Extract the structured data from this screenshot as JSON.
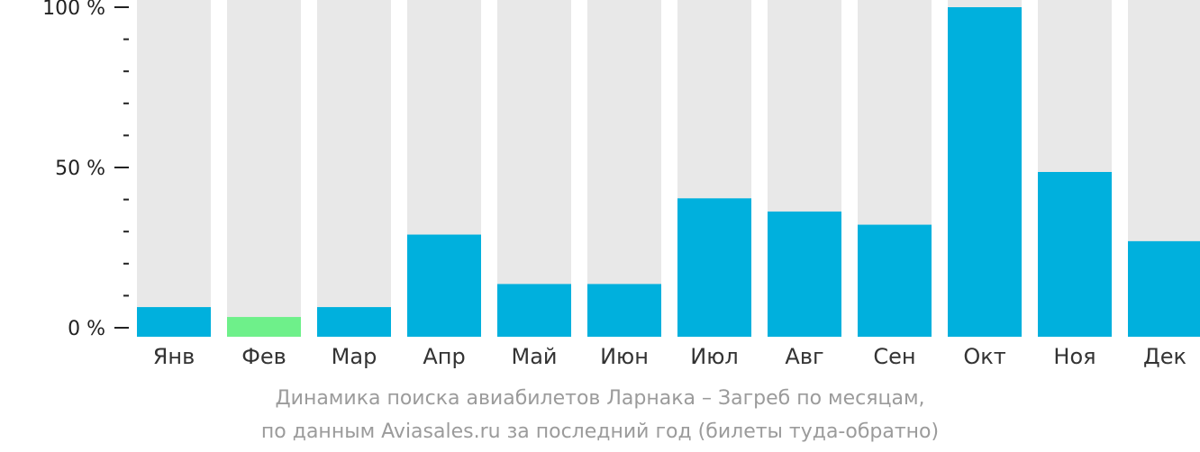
{
  "colors": {
    "track": "#e8e8e8",
    "bar": "#00b0dd",
    "bar_min": "#6ef08a",
    "axis": "#222222"
  },
  "caption": {
    "line1": "Динамика поиска авиабилетов Ларнака – Загреб по месяцам,",
    "line2": "по данным Aviasales.ru за последний год (билеты туда-обратно)"
  },
  "chart_data": {
    "type": "bar",
    "title": "Динамика поиска авиабилетов Ларнака – Загреб по месяцам, по данным Aviasales.ru за последний год (билеты туда-обратно)",
    "xlabel": "",
    "ylabel": "",
    "ylim": [
      0,
      100
    ],
    "yticks": [
      {
        "value": 0,
        "label": "0 %"
      },
      {
        "value": 50,
        "label": "50 %"
      },
      {
        "value": 100,
        "label": "100 %"
      }
    ],
    "minor_tick_step": 10,
    "categories": [
      "Янв",
      "Фев",
      "Мар",
      "Апр",
      "Май",
      "Июн",
      "Июл",
      "Авг",
      "Сен",
      "Окт",
      "Ноя",
      "Дек"
    ],
    "values": [
      9,
      6,
      9,
      31,
      16,
      16,
      42,
      38,
      34,
      100,
      50,
      29
    ],
    "highlight_index": 1,
    "grid": false,
    "legend": "none"
  }
}
